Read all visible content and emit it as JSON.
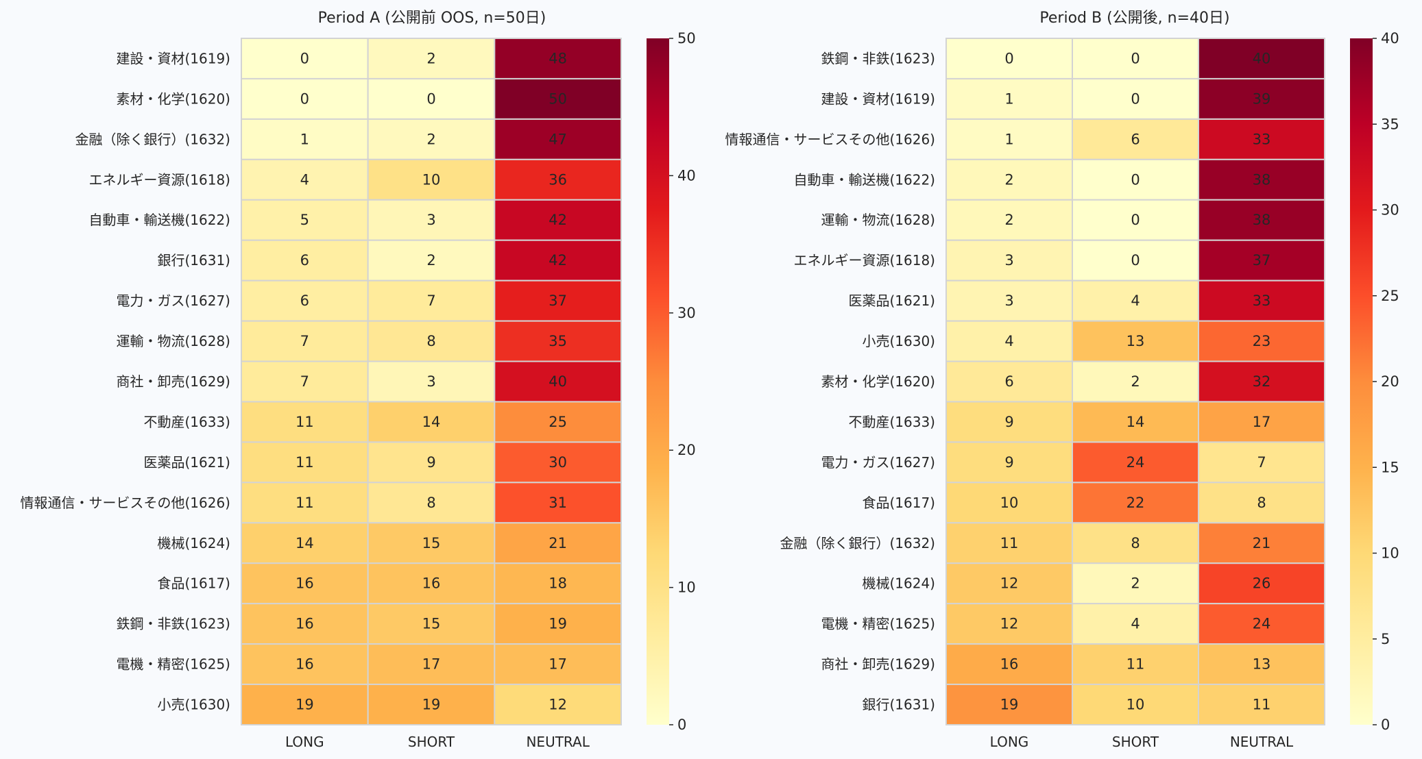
{
  "chart_data": [
    {
      "type": "heatmap",
      "title": "Period A (公開前 OOS, n=50日)",
      "columns": [
        "LONG",
        "SHORT",
        "NEUTRAL"
      ],
      "rows": [
        "建設・資材(1619)",
        "素材・化学(1620)",
        "金融（除く銀行）(1632)",
        "エネルギー資源(1618)",
        "自動車・輸送機(1622)",
        "銀行(1631)",
        "電力・ガス(1627)",
        "運輸・物流(1628)",
        "商社・卸売(1629)",
        "不動産(1633)",
        "医薬品(1621)",
        "情報通信・サービスその他(1626)",
        "機械(1624)",
        "食品(1617)",
        "鉄鋼・非鉄(1623)",
        "電機・精密(1625)",
        "小売(1630)"
      ],
      "values": [
        [
          0,
          2,
          48
        ],
        [
          0,
          0,
          50
        ],
        [
          1,
          2,
          47
        ],
        [
          4,
          10,
          36
        ],
        [
          5,
          3,
          42
        ],
        [
          6,
          2,
          42
        ],
        [
          6,
          7,
          37
        ],
        [
          7,
          8,
          35
        ],
        [
          7,
          3,
          40
        ],
        [
          11,
          14,
          25
        ],
        [
          11,
          9,
          30
        ],
        [
          11,
          8,
          31
        ],
        [
          14,
          15,
          21
        ],
        [
          16,
          16,
          18
        ],
        [
          16,
          15,
          19
        ],
        [
          16,
          17,
          17
        ],
        [
          19,
          19,
          12
        ]
      ],
      "colorbar": {
        "min": 0,
        "max": 50,
        "ticks": [
          "0",
          "10",
          "20",
          "30",
          "40",
          "50"
        ]
      },
      "colormap": "YlOrRd"
    },
    {
      "type": "heatmap",
      "title": "Period B (公開後, n=40日)",
      "columns": [
        "LONG",
        "SHORT",
        "NEUTRAL"
      ],
      "rows": [
        "鉄鋼・非鉄(1623)",
        "建設・資材(1619)",
        "情報通信・サービスその他(1626)",
        "自動車・輸送機(1622)",
        "運輸・物流(1628)",
        "エネルギー資源(1618)",
        "医薬品(1621)",
        "小売(1630)",
        "素材・化学(1620)",
        "不動産(1633)",
        "電力・ガス(1627)",
        "食品(1617)",
        "金融（除く銀行）(1632)",
        "機械(1624)",
        "電機・精密(1625)",
        "商社・卸売(1629)",
        "銀行(1631)"
      ],
      "values": [
        [
          0,
          0,
          40
        ],
        [
          1,
          0,
          39
        ],
        [
          1,
          6,
          33
        ],
        [
          2,
          0,
          38
        ],
        [
          2,
          0,
          38
        ],
        [
          3,
          0,
          37
        ],
        [
          3,
          4,
          33
        ],
        [
          4,
          13,
          23
        ],
        [
          6,
          2,
          32
        ],
        [
          9,
          14,
          17
        ],
        [
          9,
          24,
          7
        ],
        [
          10,
          22,
          8
        ],
        [
          11,
          8,
          21
        ],
        [
          12,
          2,
          26
        ],
        [
          12,
          4,
          24
        ],
        [
          16,
          11,
          13
        ],
        [
          19,
          10,
          11
        ]
      ],
      "colorbar": {
        "min": 0,
        "max": 40,
        "ticks": [
          "0",
          "5",
          "10",
          "15",
          "20",
          "25",
          "30",
          "35",
          "40"
        ]
      },
      "colormap": "YlOrRd"
    }
  ],
  "colors": {
    "grid_line": "#d3d3d3",
    "text": "#262626",
    "background": "#f8fafd"
  }
}
